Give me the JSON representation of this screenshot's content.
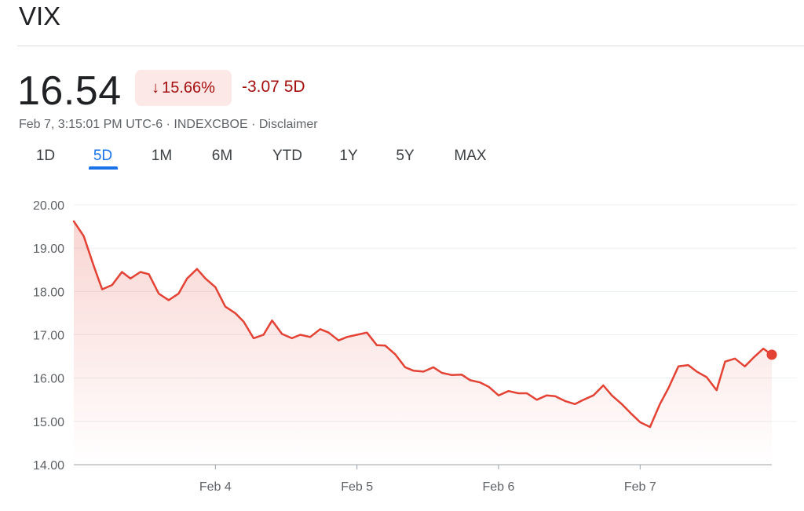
{
  "header": {
    "title": "VIX",
    "price": "16.54",
    "change_percent": "15.66%",
    "change_arrow_icon": "arrow-down-icon",
    "change_value": "-3.07 5D",
    "meta": {
      "timestamp": "Feb 7, 3:15:01 PM UTC-6",
      "separator": " · ",
      "exchange": "INDEXCBOE",
      "disclaimer": "Disclaimer"
    }
  },
  "tabs": [
    {
      "label": "1D",
      "active": false
    },
    {
      "label": "5D",
      "active": true
    },
    {
      "label": "1M",
      "active": false
    },
    {
      "label": "6M",
      "active": false
    },
    {
      "label": "YTD",
      "active": false
    },
    {
      "label": "1Y",
      "active": false
    },
    {
      "label": "5Y",
      "active": false
    },
    {
      "label": "MAX",
      "active": false
    }
  ],
  "colors": {
    "line": "#e34234",
    "negative": "#a50e0e",
    "negative_bg": "#fce8e6",
    "accent": "#1a73e8"
  },
  "chart_data": {
    "type": "area",
    "ylim": [
      14,
      20
    ],
    "yticks": [
      14,
      15,
      16,
      17,
      18,
      19,
      20
    ],
    "ytick_labels": [
      "14.00",
      "15.00",
      "16.00",
      "17.00",
      "18.00",
      "19.00",
      "20.00"
    ],
    "xlim": [
      3.0,
      7.93
    ],
    "xticks": [
      4,
      5,
      6,
      7
    ],
    "xtick_labels": [
      "Feb 4",
      "Feb 5",
      "Feb 6",
      "Feb 7"
    ],
    "grid": true,
    "series": [
      {
        "x": [
          3.0,
          3.07,
          3.14,
          3.2,
          3.27,
          3.34,
          3.4,
          3.47,
          3.53,
          3.6,
          3.67,
          3.74,
          3.8,
          3.87,
          3.93,
          4.0,
          4.07,
          4.14,
          4.2,
          4.27,
          4.34,
          4.4,
          4.47,
          4.54,
          4.6,
          4.67,
          4.74,
          4.8,
          4.87,
          4.93,
          5.0,
          5.07,
          5.14,
          5.2,
          5.27,
          5.34,
          5.4,
          5.47,
          5.54,
          5.6,
          5.67,
          5.74,
          5.8,
          5.87,
          5.93,
          6.0,
          6.07,
          6.14,
          6.2,
          6.27,
          6.34,
          6.4,
          6.47,
          6.54,
          6.6,
          6.67,
          6.74,
          6.8,
          6.87,
          6.93,
          7.0,
          7.07,
          7.14,
          7.2,
          7.27,
          7.34,
          7.4,
          7.47,
          7.54,
          7.6,
          7.67,
          7.74,
          7.8,
          7.87,
          7.93
        ],
        "y": [
          19.62,
          19.28,
          18.6,
          18.05,
          18.15,
          18.45,
          18.3,
          18.45,
          18.4,
          17.95,
          17.8,
          17.95,
          18.3,
          18.52,
          18.3,
          18.1,
          17.65,
          17.5,
          17.3,
          16.92,
          17.0,
          17.33,
          17.02,
          16.92,
          17.0,
          16.95,
          17.13,
          17.05,
          16.87,
          16.95,
          17.0,
          17.05,
          16.76,
          16.75,
          16.55,
          16.25,
          16.17,
          16.15,
          16.25,
          16.12,
          16.07,
          16.08,
          15.95,
          15.9,
          15.8,
          15.6,
          15.7,
          15.65,
          15.65,
          15.5,
          15.6,
          15.58,
          15.47,
          15.4,
          15.5,
          15.6,
          15.83,
          15.6,
          15.4,
          15.2,
          14.98,
          14.87,
          15.4,
          15.77,
          16.27,
          16.3,
          16.15,
          16.02,
          15.72,
          16.38,
          16.45,
          16.27,
          16.47,
          16.68,
          16.54
        ]
      }
    ]
  }
}
